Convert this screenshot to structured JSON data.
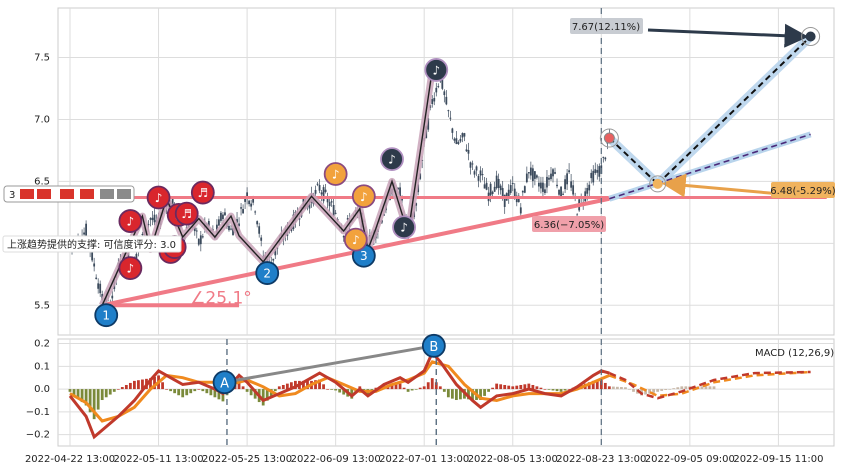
{
  "chart_data": [
    {
      "type": "candlestick",
      "yticks": [
        "5.5",
        "6.0",
        "6.5",
        "7.0",
        "7.5"
      ],
      "ylim": [
        5.26,
        7.9
      ],
      "x_ticks": [
        {
          "label": "2022-04-22 13:00",
          "i": 0
        },
        {
          "label": "2022-05-11 13:00",
          "i": 11
        },
        {
          "label": "2022-05-25 13:00",
          "i": 22
        },
        {
          "label": "2022-06-09 13:00",
          "i": 33
        },
        {
          "label": "2022-07-01 13:00",
          "i": 44
        },
        {
          "label": "2022-08-05 13:00",
          "i": 55
        },
        {
          "label": "2022-08-23 13:00",
          "i": 66
        },
        {
          "label": "2022-09-05 09:00",
          "i": 77
        },
        {
          "label": "2022-09-15 11:00",
          "i": 88
        }
      ],
      "price_path": [
        [
          0,
          5.95
        ],
        [
          2,
          6.1
        ],
        [
          4,
          5.55
        ],
        [
          5,
          5.52
        ],
        [
          6,
          5.8
        ],
        [
          7,
          5.9
        ],
        [
          8,
          5.85
        ],
        [
          9,
          6.05
        ],
        [
          10,
          6.2
        ],
        [
          11,
          6.15
        ],
        [
          12,
          6.35
        ],
        [
          13,
          6.3
        ],
        [
          14,
          6.05
        ],
        [
          15,
          6.2
        ],
        [
          16,
          6.0
        ],
        [
          17,
          6.15
        ],
        [
          18,
          6.05
        ],
        [
          19,
          6.25
        ],
        [
          20,
          6.1
        ],
        [
          21,
          6.2
        ],
        [
          22,
          6.4
        ],
        [
          23,
          6.3
        ],
        [
          24,
          5.9
        ],
        [
          25,
          5.85
        ],
        [
          26,
          6.0
        ],
        [
          27,
          6.1
        ],
        [
          28,
          6.2
        ],
        [
          29,
          6.3
        ],
        [
          30,
          6.35
        ],
        [
          31,
          6.45
        ],
        [
          32,
          6.35
        ],
        [
          33,
          6.25
        ],
        [
          34,
          6.1
        ],
        [
          35,
          6.2
        ],
        [
          36,
          6.25
        ],
        [
          37,
          6.0
        ],
        [
          38,
          6.1
        ],
        [
          39,
          6.25
        ],
        [
          40,
          6.45
        ],
        [
          41,
          6.4
        ],
        [
          42,
          6.1
        ],
        [
          43,
          6.3
        ],
        [
          44,
          6.8
        ],
        [
          45,
          7.15
        ],
        [
          46,
          7.35
        ],
        [
          47,
          7.05
        ],
        [
          48,
          6.8
        ],
        [
          49,
          6.85
        ],
        [
          50,
          6.6
        ],
        [
          51,
          6.55
        ],
        [
          52,
          6.4
        ],
        [
          53,
          6.5
        ],
        [
          54,
          6.35
        ],
        [
          55,
          6.45
        ],
        [
          56,
          6.3
        ],
        [
          57,
          6.6
        ],
        [
          58,
          6.5
        ],
        [
          59,
          6.45
        ],
        [
          60,
          6.6
        ],
        [
          61,
          6.4
        ],
        [
          62,
          6.55
        ],
        [
          63,
          6.28
        ],
        [
          64,
          6.4
        ],
        [
          65,
          6.55
        ],
        [
          66,
          6.6
        ],
        [
          67,
          6.85
        ]
      ],
      "support_line": {
        "from": [
          4,
          5.5
        ],
        "to": [
          67,
          6.36
        ]
      },
      "horizontal_line": {
        "y": 6.37,
        "from": 3,
        "to": 94
      },
      "angle_label": "∠25.1°",
      "angle_base": {
        "from": [
          4,
          5.5
        ],
        "to": [
          21,
          5.5
        ]
      },
      "zigzag": [
        [
          4,
          5.5
        ],
        [
          9,
          6.22
        ],
        [
          10,
          5.95
        ],
        [
          12,
          6.36
        ],
        [
          14,
          6.05
        ],
        [
          16,
          6.2
        ],
        [
          18,
          6.05
        ],
        [
          20,
          6.22
        ],
        [
          21,
          6.06
        ],
        [
          24,
          5.85
        ],
        [
          30,
          6.38
        ],
        [
          34,
          6.1
        ],
        [
          36,
          6.28
        ],
        [
          37,
          5.95
        ],
        [
          38,
          6.12
        ],
        [
          40,
          6.5
        ],
        [
          42,
          6.08
        ],
        [
          45,
          7.4
        ]
      ],
      "wave_labels": [
        {
          "text": "1",
          "i": 4.5,
          "y": 5.42,
          "style": "blue"
        },
        {
          "text": "2",
          "i": 24.5,
          "y": 5.76,
          "style": "blue"
        },
        {
          "text": "3",
          "i": 36.5,
          "y": 5.9,
          "style": "blue"
        },
        {
          "text": "♪",
          "i": 45.5,
          "y": 7.4,
          "style": "dark"
        },
        {
          "text": "♪",
          "i": 40,
          "y": 6.68,
          "style": "dark"
        },
        {
          "text": "♪",
          "i": 41.5,
          "y": 6.13,
          "style": "dark"
        },
        {
          "text": "♪",
          "i": 33,
          "y": 6.56,
          "style": "orange"
        },
        {
          "text": "♪",
          "i": 36.5,
          "y": 6.38,
          "style": "orange"
        },
        {
          "text": "♪",
          "i": 35.5,
          "y": 6.03,
          "style": "orange"
        },
        {
          "text": "♪",
          "i": 7.5,
          "y": 5.8,
          "style": "red"
        },
        {
          "text": "♪",
          "i": 7.5,
          "y": 6.18,
          "style": "red"
        },
        {
          "text": "♪",
          "i": 11,
          "y": 6.37,
          "style": "red"
        },
        {
          "text": "♪",
          "i": 13.5,
          "y": 6.23,
          "style": "red"
        },
        {
          "text": "♪",
          "i": 12.5,
          "y": 5.93,
          "style": "red"
        },
        {
          "text": "♬",
          "i": 13,
          "y": 5.97,
          "style": "red"
        },
        {
          "text": "♬",
          "i": 14.5,
          "y": 6.24,
          "style": "red"
        },
        {
          "text": "♬",
          "i": 16.5,
          "y": 6.41,
          "style": "red"
        }
      ],
      "forecast_main": [
        [
          67,
          6.85
        ],
        [
          73,
          6.48
        ],
        [
          92,
          7.67
        ]
      ],
      "forecast_alt": [
        [
          67,
          6.36
        ],
        [
          92,
          6.88
        ]
      ],
      "forecast_current_marker": [
        67,
        6.85
      ],
      "forecast_target_marker": [
        92,
        7.67
      ],
      "forecast_mid_marker": [
        73,
        6.48
      ],
      "arrow_line": {
        "from": [
          88,
          6.4
        ],
        "to": [
          73,
          6.48
        ]
      },
      "label_up": "7.67(12.11%)",
      "label_mid": "6.48(-5.29%)",
      "label_low": "6.36(−7.05%)",
      "support_text": "上涨趋势提供的支撑: 可信度评分: 3.0",
      "tag_left": "3",
      "vlines": [
        66
      ]
    },
    {
      "type": "macd",
      "title": "MACD (12,26,9)",
      "yticks": [
        "0.2",
        "0.1",
        "0.0",
        "−0.1",
        "−0.2"
      ],
      "ylim": [
        -0.25,
        0.22
      ],
      "dif": [
        [
          0,
          -0.03
        ],
        [
          2,
          -0.12
        ],
        [
          3,
          -0.21
        ],
        [
          4,
          -0.18
        ],
        [
          6,
          -0.12
        ],
        [
          8,
          -0.05
        ],
        [
          10,
          0.04
        ],
        [
          11,
          0.08
        ],
        [
          12,
          0.06
        ],
        [
          14,
          0.02
        ],
        [
          16,
          0.03
        ],
        [
          18,
          0.0
        ],
        [
          19,
          -0.02
        ],
        [
          21,
          0.06
        ],
        [
          22,
          0.03
        ],
        [
          24,
          -0.05
        ],
        [
          26,
          -0.02
        ],
        [
          28,
          0.01
        ],
        [
          30,
          0.05
        ],
        [
          31,
          0.07
        ],
        [
          33,
          0.03
        ],
        [
          35,
          -0.03
        ],
        [
          36,
          0.0
        ],
        [
          37,
          -0.03
        ],
        [
          39,
          0.02
        ],
        [
          41,
          0.05
        ],
        [
          42,
          0.03
        ],
        [
          44,
          0.08
        ],
        [
          45,
          0.16
        ],
        [
          46,
          0.12
        ],
        [
          48,
          0.02
        ],
        [
          50,
          -0.05
        ],
        [
          51,
          -0.08
        ],
        [
          53,
          -0.03
        ],
        [
          55,
          -0.02
        ],
        [
          57,
          0.0
        ],
        [
          59,
          -0.02
        ],
        [
          61,
          -0.03
        ],
        [
          63,
          0.01
        ],
        [
          65,
          0.06
        ],
        [
          66,
          0.08
        ],
        [
          67,
          0.07
        ]
      ],
      "dea": [
        [
          0,
          -0.02
        ],
        [
          2,
          -0.06
        ],
        [
          4,
          -0.14
        ],
        [
          6,
          -0.12
        ],
        [
          8,
          -0.08
        ],
        [
          10,
          0.0
        ],
        [
          12,
          0.06
        ],
        [
          14,
          0.05
        ],
        [
          16,
          0.03
        ],
        [
          18,
          0.03
        ],
        [
          20,
          0.02
        ],
        [
          22,
          0.04
        ],
        [
          24,
          0.01
        ],
        [
          26,
          -0.03
        ],
        [
          28,
          -0.02
        ],
        [
          30,
          0.02
        ],
        [
          32,
          0.05
        ],
        [
          34,
          0.02
        ],
        [
          36,
          -0.01
        ],
        [
          38,
          -0.01
        ],
        [
          40,
          0.02
        ],
        [
          42,
          0.04
        ],
        [
          44,
          0.07
        ],
        [
          45,
          0.12
        ],
        [
          47,
          0.1
        ],
        [
          49,
          0.02
        ],
        [
          51,
          -0.04
        ],
        [
          53,
          -0.05
        ],
        [
          55,
          -0.03
        ],
        [
          57,
          -0.02
        ],
        [
          59,
          -0.02
        ],
        [
          61,
          -0.02
        ],
        [
          63,
          0.0
        ],
        [
          65,
          0.03
        ],
        [
          67,
          0.06
        ]
      ],
      "forecast_dif": [
        [
          67,
          0.07
        ],
        [
          69,
          0.04
        ],
        [
          71,
          -0.02
        ],
        [
          73,
          -0.04
        ],
        [
          76,
          -0.01
        ],
        [
          80,
          0.04
        ],
        [
          85,
          0.07
        ],
        [
          92,
          0.075
        ]
      ],
      "forecast_dea": [
        [
          67,
          0.06
        ],
        [
          70,
          0.02
        ],
        [
          73,
          -0.03
        ],
        [
          76,
          -0.02
        ],
        [
          80,
          0.03
        ],
        [
          85,
          0.06
        ],
        [
          92,
          0.075
        ]
      ],
      "divergence": {
        "from": [
          19.2,
          0.03
        ],
        "to": [
          45.2,
          0.19
        ]
      },
      "labels": [
        {
          "text": "A",
          "i": 19.2,
          "y": 0.03
        },
        {
          "text": "B",
          "i": 45.2,
          "y": 0.19
        }
      ],
      "vlines": [
        19.5,
        45.5,
        66
      ]
    }
  ]
}
